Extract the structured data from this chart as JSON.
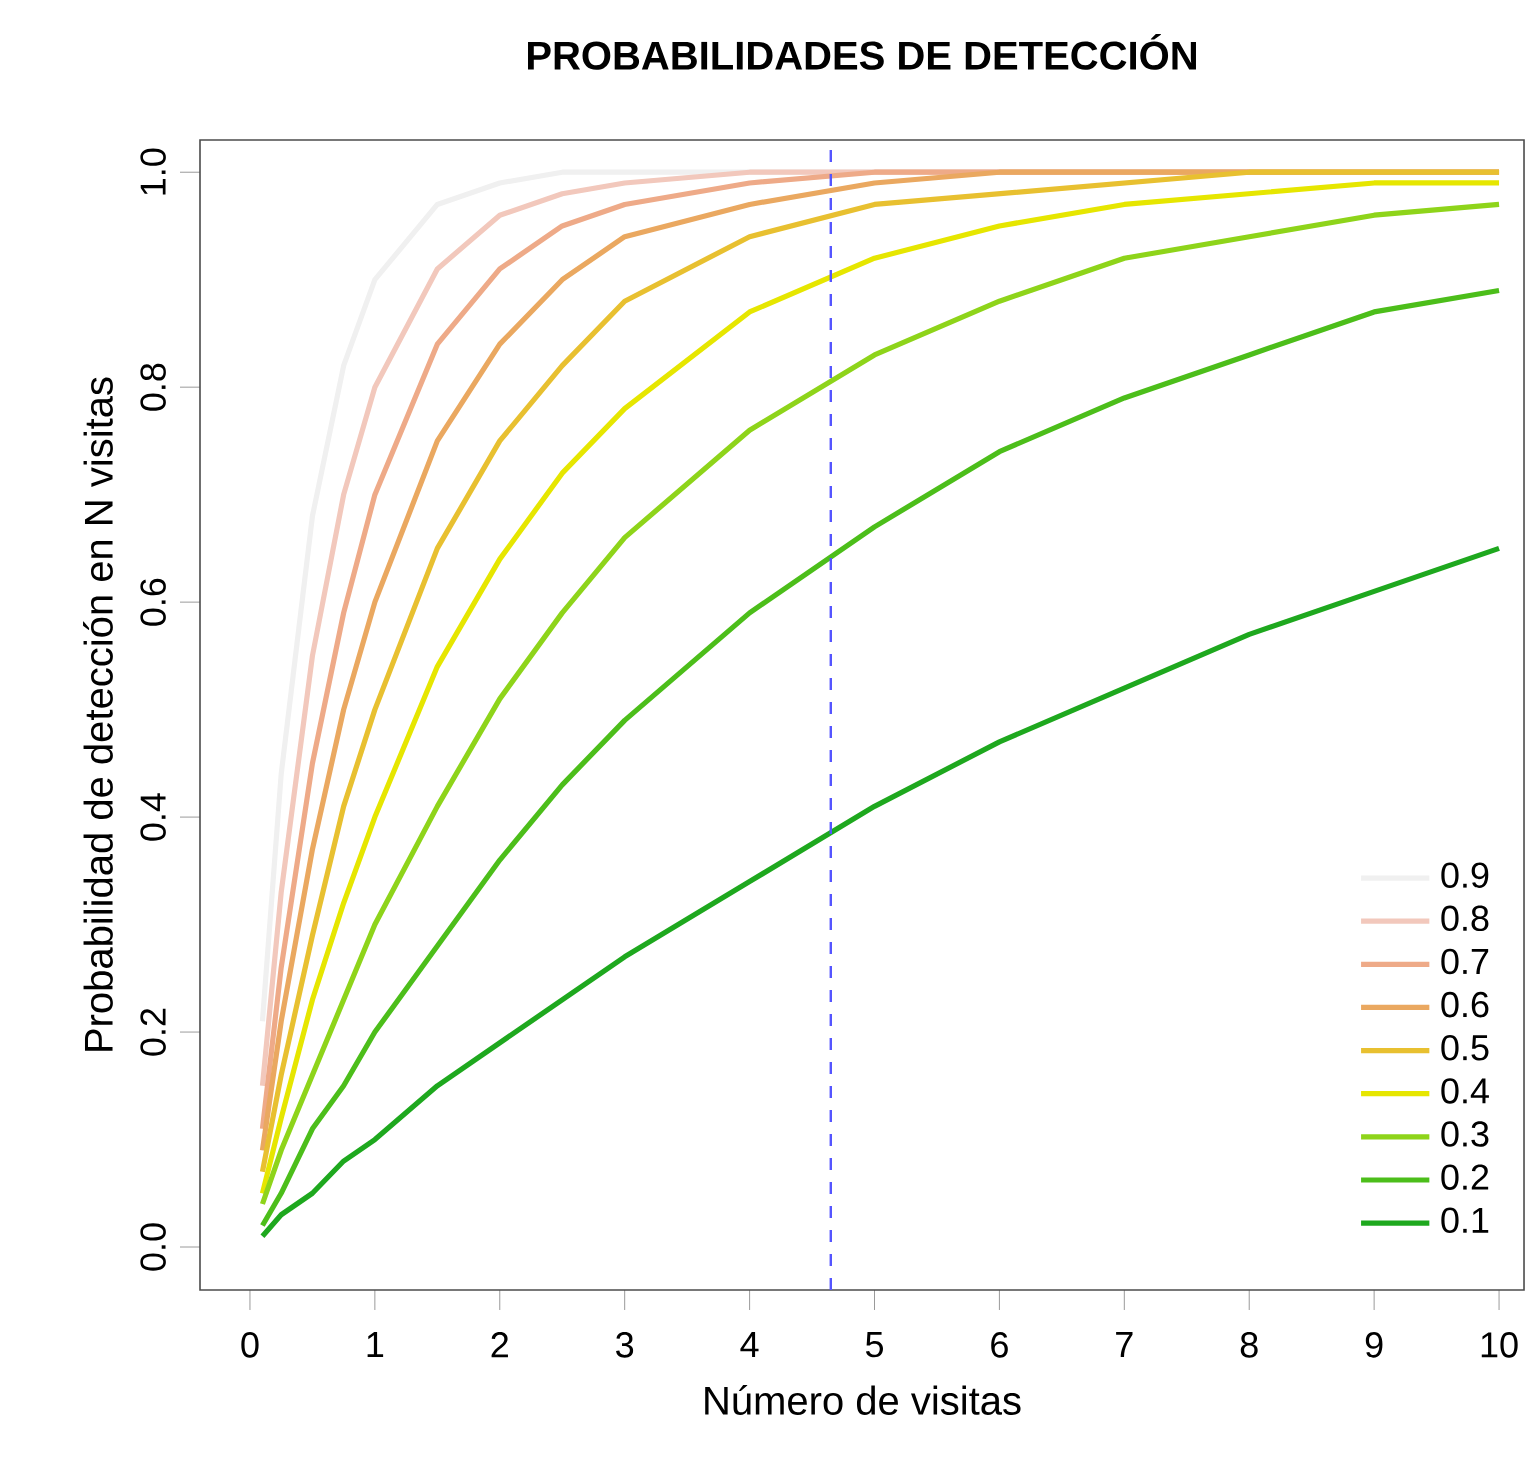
{
  "chart_data": {
    "type": "line",
    "title": "PROBABILIDADES DE DETECCIÓN",
    "xlabel": "Número de visitas",
    "ylabel": "Probabilidad de detección en N visitas",
    "x": [
      0.1,
      0.25,
      0.5,
      0.75,
      1,
      1.5,
      2,
      2.5,
      3,
      4,
      5,
      6,
      7,
      8,
      9,
      10
    ],
    "series": [
      {
        "name": "0.9",
        "color": "#f0f0f0",
        "values": [
          0.21,
          0.44,
          0.68,
          0.82,
          0.9,
          0.97,
          0.99,
          1.0,
          1.0,
          1.0,
          1.0,
          1.0,
          1.0,
          1.0,
          1.0,
          1.0
        ]
      },
      {
        "name": "0.8",
        "color": "#f2c8bc",
        "values": [
          0.15,
          0.33,
          0.55,
          0.7,
          0.8,
          0.91,
          0.96,
          0.98,
          0.99,
          1.0,
          1.0,
          1.0,
          1.0,
          1.0,
          null,
          null
        ]
      },
      {
        "name": "0.7",
        "color": "#eeaa88",
        "values": [
          0.11,
          0.26,
          0.45,
          0.59,
          0.7,
          0.84,
          0.91,
          0.95,
          0.97,
          0.99,
          1.0,
          1.0,
          1.0,
          1.0,
          1.0,
          1.0
        ]
      },
      {
        "name": "0.6",
        "color": "#eaa860",
        "values": [
          0.09,
          0.21,
          0.37,
          0.5,
          0.6,
          0.75,
          0.84,
          0.9,
          0.94,
          0.97,
          0.99,
          1.0,
          1.0,
          1.0,
          1.0,
          1.0
        ]
      },
      {
        "name": "0.5",
        "color": "#e8c030",
        "values": [
          0.07,
          0.16,
          0.29,
          0.41,
          0.5,
          0.65,
          0.75,
          0.82,
          0.88,
          0.94,
          0.97,
          0.98,
          0.99,
          1.0,
          1.0,
          1.0
        ]
      },
      {
        "name": "0.4",
        "color": "#e6e600",
        "values": [
          0.05,
          0.12,
          0.23,
          0.32,
          0.4,
          0.54,
          0.64,
          0.72,
          0.78,
          0.87,
          0.92,
          0.95,
          0.97,
          0.98,
          0.99,
          0.99
        ]
      },
      {
        "name": "0.3",
        "color": "#8ed41a",
        "values": [
          0.04,
          0.09,
          0.16,
          0.23,
          0.3,
          0.41,
          0.51,
          0.59,
          0.66,
          0.76,
          0.83,
          0.88,
          0.92,
          0.94,
          0.96,
          0.97
        ]
      },
      {
        "name": "0.2",
        "color": "#4cbe1a",
        "values": [
          0.02,
          0.05,
          0.11,
          0.15,
          0.2,
          0.28,
          0.36,
          0.43,
          0.49,
          0.59,
          0.67,
          0.74,
          0.79,
          0.83,
          0.87,
          0.89
        ]
      },
      {
        "name": "0.1",
        "color": "#1ea81e",
        "values": [
          0.01,
          0.03,
          0.05,
          0.08,
          0.1,
          0.15,
          0.19,
          0.23,
          0.27,
          0.34,
          0.41,
          0.47,
          0.52,
          0.57,
          0.61,
          0.65
        ]
      }
    ],
    "xlim": [
      -0.4,
      10.2
    ],
    "ylim": [
      -0.04,
      1.03
    ],
    "xticks": [
      0,
      1,
      2,
      3,
      4,
      5,
      6,
      7,
      8,
      9,
      10
    ],
    "yticks": [
      {
        "value": 0,
        "label": "0.0"
      },
      {
        "value": 0.2,
        "label": "0.2"
      },
      {
        "value": 0.4,
        "label": "0.4"
      },
      {
        "value": 0.6,
        "label": "0.6"
      },
      {
        "value": 0.8,
        "label": "0.8"
      },
      {
        "value": 1,
        "label": "1.0"
      }
    ],
    "ref_lines": [
      {
        "axis": "x",
        "value": 4.65,
        "color": "#5555ff",
        "line_style": "dashed"
      }
    ],
    "legend": "bottom right"
  }
}
